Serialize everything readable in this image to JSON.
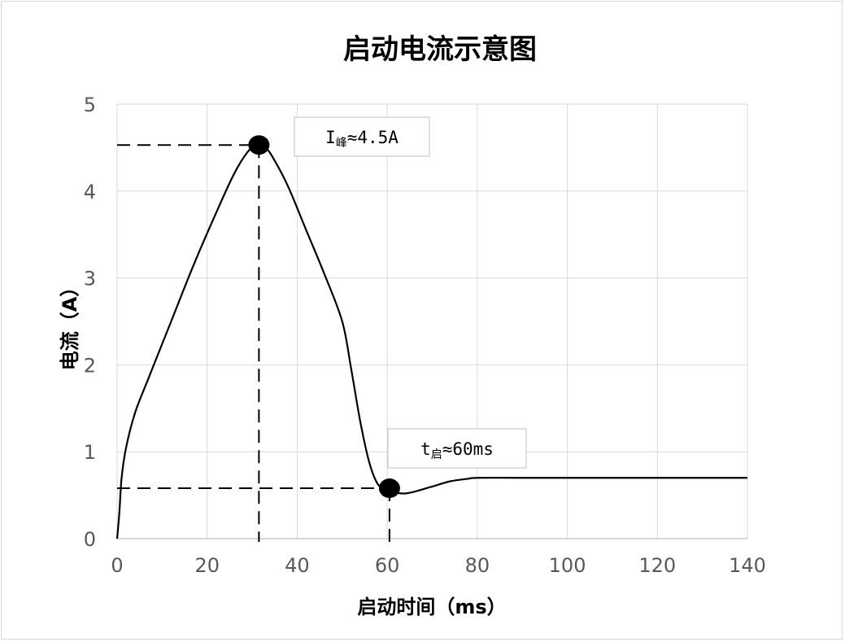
{
  "chart_data": {
    "type": "line",
    "title": "启动电流示意图",
    "xlabel": "启动时间（ms）",
    "ylabel": "电流（A）",
    "xlim": [
      0,
      140
    ],
    "ylim": [
      0,
      5
    ],
    "x_ticks": [
      "0",
      "20",
      "40",
      "60",
      "80",
      "100",
      "120",
      "140"
    ],
    "y_ticks": [
      "0",
      "1",
      "2",
      "3",
      "4",
      "5"
    ],
    "grid": true,
    "x": [
      0,
      0.5,
      1,
      2,
      4,
      7,
      12,
      17,
      22,
      26,
      29,
      31,
      33,
      35,
      38,
      42,
      46,
      50,
      52,
      54,
      56,
      58,
      60,
      62,
      64,
      66,
      70,
      74,
      78,
      80,
      90,
      100,
      110,
      120,
      130,
      140
    ],
    "y": [
      0,
      0.3,
      0.7,
      1.05,
      1.45,
      1.85,
      2.5,
      3.15,
      3.75,
      4.2,
      4.45,
      4.53,
      4.5,
      4.35,
      4.05,
      3.55,
      3.05,
      2.5,
      1.95,
      1.35,
      0.88,
      0.62,
      0.58,
      0.53,
      0.52,
      0.54,
      0.6,
      0.66,
      0.69,
      0.7,
      0.7,
      0.7,
      0.7,
      0.7,
      0.7,
      0.7
    ],
    "color": "#000000",
    "markers": [
      {
        "name": "peak",
        "x": 31.5,
        "y": 4.53
      },
      {
        "name": "start",
        "x": 60.5,
        "y": 0.58
      }
    ],
    "annotations": [
      {
        "main": "I",
        "sub": "峰",
        "value": "≈4.5A"
      },
      {
        "main": "t",
        "sub": "启",
        "value": "≈60ms"
      }
    ]
  }
}
